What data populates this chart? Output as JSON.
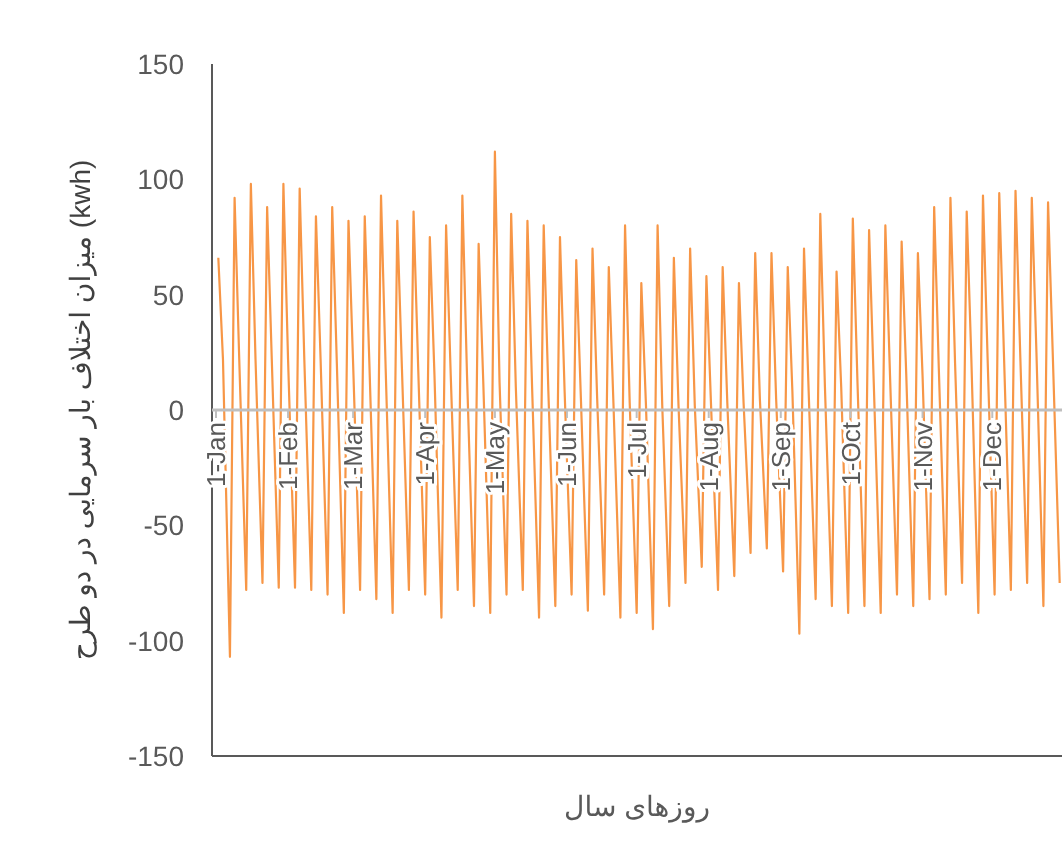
{
  "chart_data": {
    "type": "line",
    "xlabel": "روزهای سال",
    "ylabel": "میزان اختلاف بار سرمایی در دو طرح (kwh)",
    "xlim": [
      "--01-01",
      "--12-31"
    ],
    "xticks": [
      {
        "value": "--01-01",
        "label": "1-Jan"
      },
      {
        "value": "--02-01",
        "label": "1-Feb"
      },
      {
        "value": "--03-01",
        "label": "1-Mar"
      },
      {
        "value": "--04-01",
        "label": "1-Apr"
      },
      {
        "value": "--05-01",
        "label": "1-May"
      },
      {
        "value": "--06-01",
        "label": "1-Jun"
      },
      {
        "value": "--07-01",
        "label": "1-Jul"
      },
      {
        "value": "--08-01",
        "label": "1-Aug"
      },
      {
        "value": "--09-01",
        "label": "1-Sep"
      },
      {
        "value": "--10-01",
        "label": "1-Oct"
      },
      {
        "value": "--11-01",
        "label": "1-Nov"
      },
      {
        "value": "--12-01",
        "label": "1-Dec"
      }
    ],
    "ylim": [
      -150,
      150
    ],
    "yticks": [
      -150,
      -100,
      -50,
      0,
      50,
      100,
      150
    ],
    "grid": false,
    "line_style": "solid",
    "series": [
      {
        "color": "#f79646",
        "x": [
          "--01-02",
          "--01-04",
          "--01-07",
          "--01-09",
          "--01-11",
          "--01-14",
          "--01-16",
          "--01-18",
          "--01-21",
          "--01-23",
          "--01-25",
          "--01-28",
          "--01-30",
          "--02-01",
          "--02-04",
          "--02-06",
          "--02-08",
          "--02-11",
          "--02-13",
          "--02-15",
          "--02-18",
          "--02-20",
          "--02-22",
          "--02-25",
          "--02-27",
          "--03-01",
          "--03-04",
          "--03-06",
          "--03-08",
          "--03-11",
          "--03-13",
          "--03-15",
          "--03-18",
          "--03-20",
          "--03-22",
          "--03-25",
          "--03-27",
          "--03-29",
          "--04-01",
          "--04-03",
          "--04-05",
          "--04-08",
          "--04-10",
          "--04-12",
          "--04-15",
          "--04-17",
          "--04-19",
          "--04-22",
          "--04-24",
          "--04-26",
          "--04-29",
          "--05-01",
          "--05-03",
          "--05-06",
          "--05-08",
          "--05-10",
          "--05-13",
          "--05-15",
          "--05-17",
          "--05-20",
          "--05-22",
          "--05-24",
          "--05-27",
          "--05-29",
          "--05-31",
          "--06-03",
          "--06-05",
          "--06-07",
          "--06-10",
          "--06-12",
          "--06-14",
          "--06-17",
          "--06-19",
          "--06-21",
          "--06-24",
          "--06-26",
          "--06-28",
          "--07-01",
          "--07-03",
          "--07-05",
          "--07-08",
          "--07-10",
          "--07-12",
          "--07-15",
          "--07-17",
          "--07-19",
          "--07-22",
          "--07-24",
          "--07-26",
          "--07-29",
          "--07-31",
          "--08-02",
          "--08-05",
          "--08-07",
          "--08-09",
          "--08-12",
          "--08-14",
          "--08-16",
          "--08-19",
          "--08-21",
          "--08-23",
          "--08-26",
          "--08-28",
          "--08-30",
          "--09-02",
          "--09-04",
          "--09-06",
          "--09-09",
          "--09-11",
          "--09-13",
          "--09-16",
          "--09-18",
          "--09-20",
          "--09-23",
          "--09-25",
          "--09-27",
          "--09-30",
          "--10-02",
          "--10-04",
          "--10-07",
          "--10-09",
          "--10-11",
          "--10-14",
          "--10-16",
          "--10-18",
          "--10-21",
          "--10-23",
          "--10-25",
          "--10-28",
          "--10-30",
          "--11-01",
          "--11-04",
          "--11-06",
          "--11-08",
          "--11-11",
          "--11-13",
          "--11-15",
          "--11-18",
          "--11-20",
          "--11-22",
          "--11-25",
          "--11-27",
          "--11-29",
          "--12-02",
          "--12-04",
          "--12-06",
          "--12-09",
          "--12-11",
          "--12-13",
          "--12-16",
          "--12-18",
          "--12-20",
          "--12-23",
          "--12-25",
          "--12-27",
          "--12-30"
        ],
        "values": [
          66,
          22,
          -107,
          92,
          22,
          -78,
          98,
          22,
          -75,
          88,
          22,
          -77,
          98,
          22,
          -77,
          96,
          22,
          -78,
          84,
          22,
          -80,
          88,
          20,
          -88,
          82,
          20,
          -78,
          84,
          20,
          -82,
          93,
          18,
          -88,
          82,
          18,
          -78,
          86,
          18,
          -80,
          75,
          15,
          -90,
          80,
          15,
          -78,
          93,
          15,
          -85,
          72,
          12,
          -88,
          112,
          12,
          -80,
          85,
          10,
          -78,
          82,
          10,
          -90,
          80,
          8,
          -85,
          75,
          8,
          -80,
          65,
          5,
          -87,
          70,
          5,
          -80,
          62,
          3,
          -90,
          80,
          3,
          -88,
          55,
          2,
          -95,
          80,
          2,
          -85,
          66,
          2,
          -75,
          70,
          2,
          -68,
          58,
          2,
          -78,
          62,
          3,
          -72,
          55,
          3,
          -62,
          68,
          5,
          -60,
          68,
          5,
          -70,
          62,
          8,
          -97,
          70,
          8,
          -82,
          85,
          10,
          -85,
          60,
          10,
          -88,
          83,
          12,
          -85,
          78,
          12,
          -88,
          80,
          15,
          -80,
          73,
          15,
          -85,
          68,
          15,
          -82,
          88,
          18,
          -80,
          92,
          20,
          -75,
          86,
          22,
          -88,
          93,
          22,
          -80,
          94,
          25,
          -78,
          95,
          25,
          -75,
          92,
          25,
          -85,
          90,
          25,
          -75
        ]
      }
    ]
  }
}
